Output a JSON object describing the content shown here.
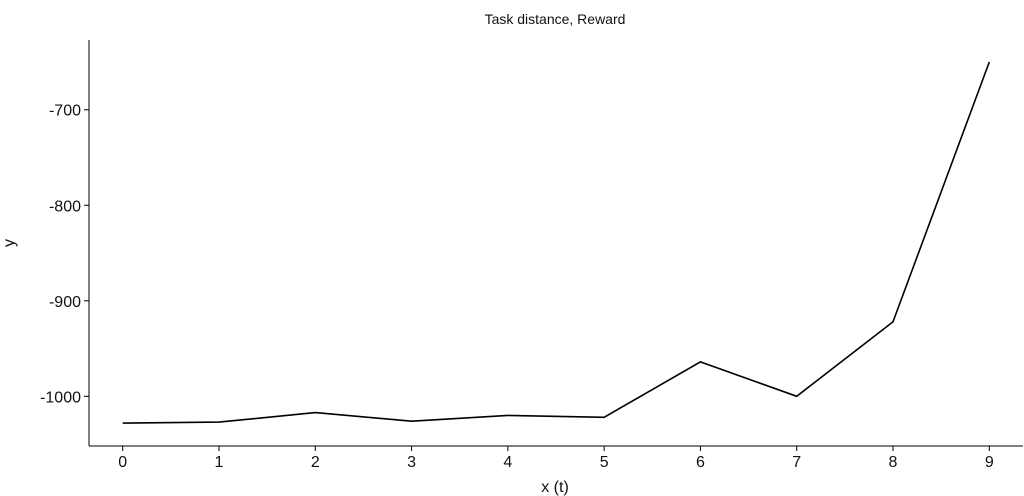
{
  "chart_data": {
    "type": "line",
    "title": "Task distance, Reward",
    "xlabel": "x (t)",
    "ylabel": "y",
    "x": [
      0,
      1,
      2,
      3,
      4,
      5,
      6,
      7,
      8,
      9
    ],
    "series": [
      {
        "values": [
          -1028,
          -1027,
          -1017,
          -1026,
          -1020,
          -1022,
          -964,
          -1000,
          -922,
          -650
        ]
      }
    ],
    "xticks": [
      0,
      1,
      2,
      3,
      4,
      5,
      6,
      7,
      8,
      9
    ],
    "xtick_labels": [
      "0",
      "1",
      "2",
      "3",
      "4",
      "5",
      "6",
      "7",
      "8",
      "9"
    ],
    "yticks": [
      -1000,
      -900,
      -800,
      -700
    ],
    "ytick_labels": [
      "-1000",
      "-900",
      "-800",
      "-700"
    ],
    "xlim": [
      -0.35,
      9.35
    ],
    "ylim": [
      -1052,
      -627
    ],
    "grid": false,
    "line_color": "#000000"
  }
}
